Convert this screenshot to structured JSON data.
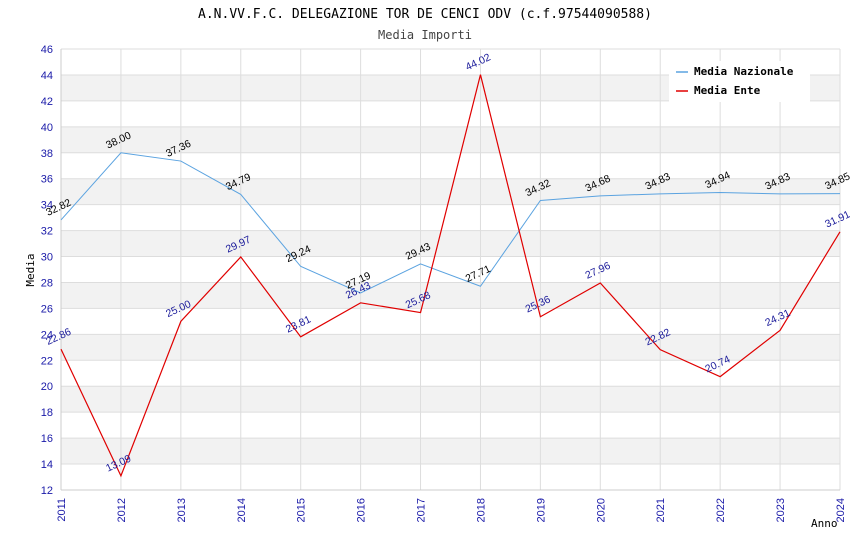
{
  "chart_data": {
    "type": "line",
    "title": "A.N.VV.F.C. DELEGAZIONE TOR DE CENCI ODV (c.f.97544090588)",
    "subtitle": "Media Importi",
    "xlabel": "Anno",
    "ylabel": "Media",
    "x": [
      2011,
      2012,
      2013,
      2014,
      2015,
      2016,
      2017,
      2018,
      2019,
      2020,
      2021,
      2022,
      2023,
      2024
    ],
    "ylim": [
      12,
      46
    ],
    "yticks": [
      12,
      14,
      16,
      18,
      20,
      22,
      24,
      26,
      28,
      30,
      32,
      34,
      36,
      38,
      40,
      42,
      44,
      46
    ],
    "grid": true,
    "legend_position": "top-right",
    "series": [
      {
        "name": "Media Nazionale",
        "color": "#5ba3e0",
        "label_color": "#000000",
        "values": [
          32.82,
          38.0,
          37.36,
          34.79,
          29.24,
          27.19,
          29.43,
          27.71,
          34.32,
          34.68,
          34.83,
          34.94,
          34.83,
          34.85
        ],
        "labels": [
          "32.82",
          "38.00",
          "37.36",
          "34.79",
          "29.24",
          "27.19",
          "29.43",
          "27.71",
          "34.32",
          "34.68",
          "34.83",
          "34.94",
          "34.83",
          "34.85"
        ]
      },
      {
        "name": "Media Ente",
        "color": "#e00000",
        "label_color": "#1a1a9a",
        "values": [
          22.86,
          13.09,
          25.0,
          29.97,
          23.81,
          26.43,
          25.68,
          44.02,
          25.36,
          27.96,
          22.82,
          20.74,
          24.31,
          31.91
        ],
        "labels": [
          "22.86",
          "13.09",
          "25.00",
          "29.97",
          "23.81",
          "26.43",
          "25.68",
          "44.02",
          "25.36",
          "27.96",
          "22.82",
          "20.74",
          "24.31",
          "31.91"
        ]
      }
    ]
  }
}
